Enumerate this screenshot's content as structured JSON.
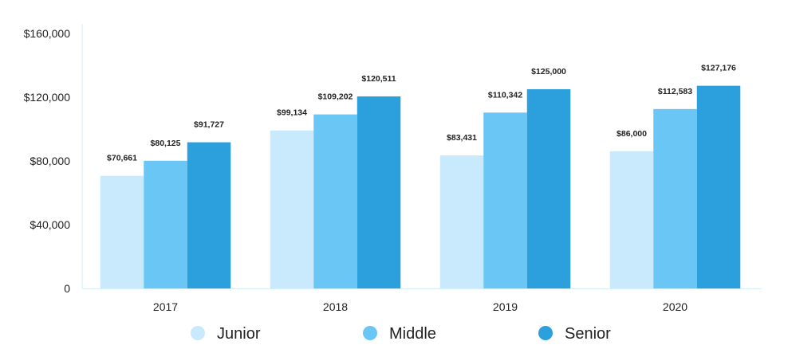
{
  "chart_data": {
    "type": "bar",
    "categories": [
      "2017",
      "2018",
      "2019",
      "2020"
    ],
    "series": [
      {
        "name": "Junior",
        "color": "#c8eafc",
        "values": [
          70661,
          99134,
          83431,
          86000
        ],
        "labels": [
          "$70,661",
          "$99,134",
          "$83,431",
          "$86,000"
        ]
      },
      {
        "name": "Middle",
        "color": "#69c6f5",
        "values": [
          80125,
          109202,
          110342,
          112583
        ],
        "labels": [
          "$80,125",
          "$109,202",
          "$110,342",
          "$112,583"
        ]
      },
      {
        "name": "Senior",
        "color": "#2c9fdd",
        "values": [
          91727,
          120511,
          125000,
          127176
        ],
        "labels": [
          "$91,727",
          "$120,511",
          "$125,000",
          "$127,176"
        ]
      }
    ],
    "yticks": [
      {
        "value": 0,
        "label": "0"
      },
      {
        "value": 40000,
        "label": "$40,000"
      },
      {
        "value": 80000,
        "label": "$80,000"
      },
      {
        "value": 120000,
        "label": "$120,000"
      },
      {
        "value": 160000,
        "label": "$160,000"
      }
    ],
    "ylim": [
      0,
      160000
    ],
    "title": "",
    "xlabel": "",
    "ylabel": "",
    "grid": false,
    "legend_position": "bottom-center",
    "axis_color": "#d6eef8"
  }
}
